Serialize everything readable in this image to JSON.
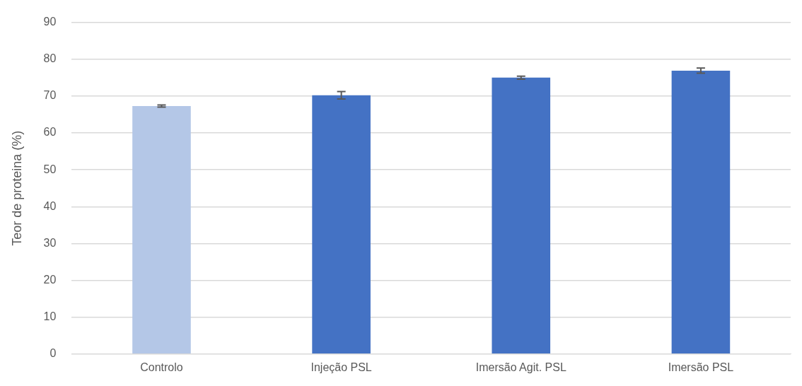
{
  "chart_data": {
    "type": "bar",
    "ylabel": "Teor de proteina (%)",
    "categories": [
      "Controlo",
      "Injeção PSL",
      "Imersão Agit. PSL",
      "Imersão PSL"
    ],
    "values": [
      67.3,
      70.2,
      75.0,
      76.9
    ],
    "colors": [
      "#b4c7e7",
      "#4472c4",
      "#4472c4",
      "#4472c4"
    ],
    "errors": [
      0.3,
      1.0,
      0.4,
      0.7
    ],
    "ylim": [
      0,
      90
    ],
    "yticks": [
      0,
      10,
      20,
      30,
      40,
      50,
      60,
      70,
      80,
      90
    ],
    "grid": "y",
    "legend": false
  }
}
